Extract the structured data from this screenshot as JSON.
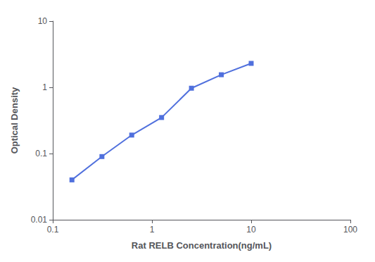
{
  "chart_data": {
    "type": "line",
    "x": [
      0.156,
      0.313,
      0.625,
      1.25,
      2.5,
      5.0,
      10.0
    ],
    "values": [
      0.04,
      0.09,
      0.19,
      0.35,
      0.97,
      1.55,
      2.3
    ],
    "xlabel": "Rat RELB Concentration(ng/mL)",
    "ylabel": "Optical Density",
    "xlim": [
      0.1,
      100
    ],
    "ylim": [
      0.01,
      10
    ],
    "xticks": [
      0.1,
      1,
      10,
      100
    ],
    "yticks": [
      0.01,
      0.1,
      1,
      10
    ],
    "log": true,
    "grid": false,
    "marker": "square"
  }
}
